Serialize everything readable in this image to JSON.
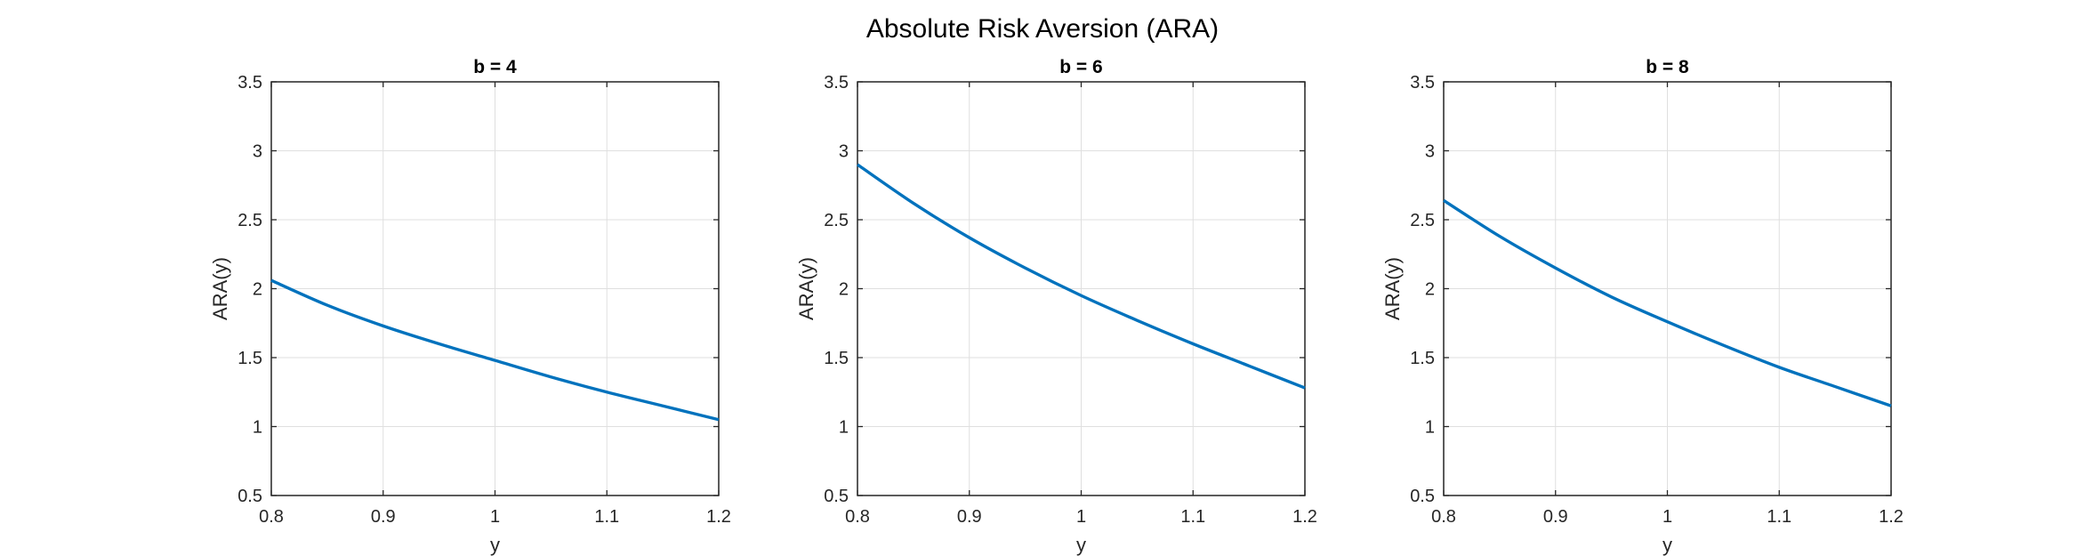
{
  "figure": {
    "title": "Absolute Risk Aversion (ARA)"
  },
  "colors": {
    "line": "#0072BD",
    "grid": "#dfdfdf",
    "axis": "#262626"
  },
  "chart_data": [
    {
      "type": "line",
      "title": "b = 4",
      "xlabel": "y",
      "ylabel": "ARA(y)",
      "xlim": [
        0.8,
        1.2
      ],
      "ylim": [
        0.5,
        3.5
      ],
      "xticks": [
        0.8,
        0.9,
        1.0,
        1.1,
        1.2
      ],
      "xtick_labels": [
        "0.8",
        "0.9",
        "1",
        "1.1",
        "1.2"
      ],
      "yticks": [
        0.5,
        1.0,
        1.5,
        2.0,
        2.5,
        3.0,
        3.5
      ],
      "ytick_labels": [
        "0.5",
        "1",
        "1.5",
        "2",
        "2.5",
        "3",
        "3.5"
      ],
      "grid": true,
      "series": [
        {
          "x": [
            0.8,
            0.85,
            0.9,
            0.95,
            1.0,
            1.05,
            1.1,
            1.15,
            1.2
          ],
          "y": [
            2.06,
            1.88,
            1.73,
            1.6,
            1.48,
            1.36,
            1.25,
            1.15,
            1.05
          ]
        }
      ]
    },
    {
      "type": "line",
      "title": "b = 6",
      "xlabel": "y",
      "ylabel": "ARA(y)",
      "xlim": [
        0.8,
        1.2
      ],
      "ylim": [
        0.5,
        3.5
      ],
      "xticks": [
        0.8,
        0.9,
        1.0,
        1.1,
        1.2
      ],
      "xtick_labels": [
        "0.8",
        "0.9",
        "1",
        "1.1",
        "1.2"
      ],
      "yticks": [
        0.5,
        1.0,
        1.5,
        2.0,
        2.5,
        3.0,
        3.5
      ],
      "ytick_labels": [
        "0.5",
        "1",
        "1.5",
        "2",
        "2.5",
        "3",
        "3.5"
      ],
      "grid": true,
      "series": [
        {
          "x": [
            0.8,
            0.85,
            0.9,
            0.95,
            1.0,
            1.05,
            1.1,
            1.15,
            1.2
          ],
          "y": [
            2.9,
            2.62,
            2.37,
            2.15,
            1.95,
            1.77,
            1.6,
            1.44,
            1.28
          ]
        }
      ]
    },
    {
      "type": "line",
      "title": "b = 8",
      "xlabel": "y",
      "ylabel": "ARA(y)",
      "xlim": [
        0.8,
        1.2
      ],
      "ylim": [
        0.5,
        3.5
      ],
      "xticks": [
        0.8,
        0.9,
        1.0,
        1.1,
        1.2
      ],
      "xtick_labels": [
        "0.8",
        "0.9",
        "1",
        "1.1",
        "1.2"
      ],
      "yticks": [
        0.5,
        1.0,
        1.5,
        2.0,
        2.5,
        3.0,
        3.5
      ],
      "ytick_labels": [
        "0.5",
        "1",
        "1.5",
        "2",
        "2.5",
        "3",
        "3.5"
      ],
      "grid": true,
      "series": [
        {
          "x": [
            0.8,
            0.85,
            0.9,
            0.95,
            1.0,
            1.05,
            1.1,
            1.15,
            1.2
          ],
          "y": [
            2.64,
            2.38,
            2.15,
            1.94,
            1.76,
            1.59,
            1.43,
            1.29,
            1.15
          ]
        }
      ]
    }
  ]
}
